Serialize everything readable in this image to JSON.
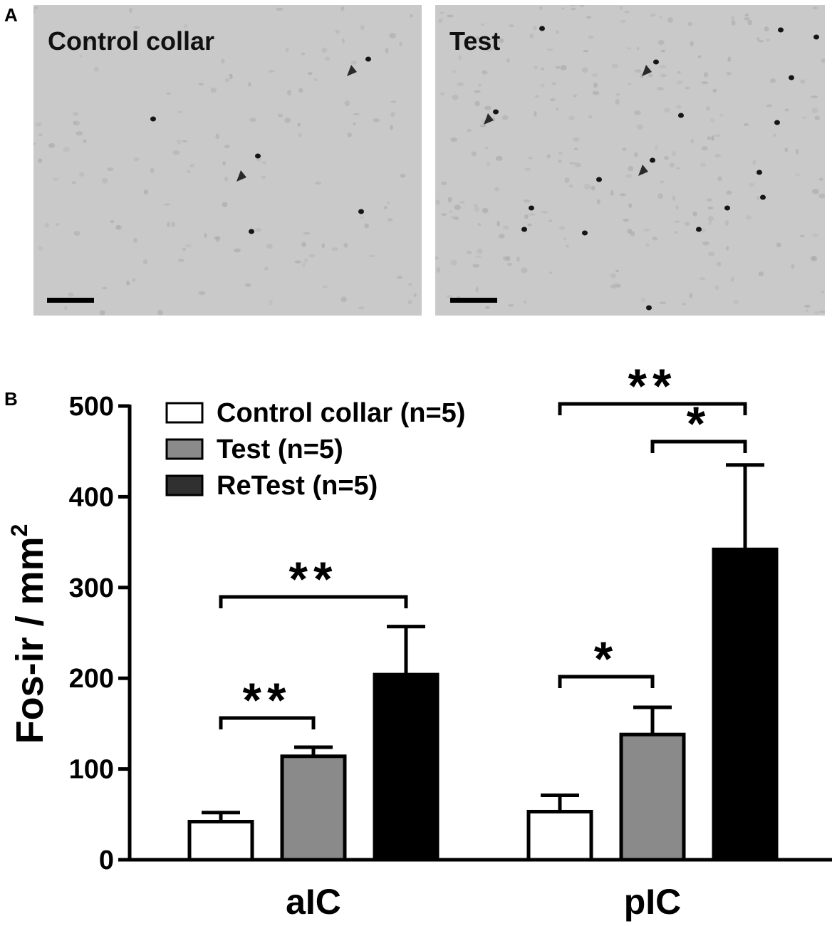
{
  "panel_a": {
    "letter": "A",
    "images": [
      {
        "label": "Control collar",
        "arrowheads": 2,
        "icon": "arrowhead-icon"
      },
      {
        "label": "Test",
        "arrowheads": 3,
        "icon": "arrowhead-icon"
      }
    ]
  },
  "panel_b": {
    "letter": "B"
  },
  "chart_data": {
    "type": "bar",
    "categories": [
      "aIC",
      "pIC"
    ],
    "series": [
      {
        "name": "Control collar (n=5)",
        "color": "#ffffff",
        "values": [
          42,
          53
        ],
        "errors": [
          10,
          18
        ]
      },
      {
        "name": "Test (n=5)",
        "color": "#8a8a8a",
        "values": [
          114,
          138
        ],
        "errors": [
          10,
          30
        ]
      },
      {
        "name": "ReTest (n=5)",
        "color": "#000000",
        "values": [
          204,
          342
        ],
        "errors": [
          53,
          93
        ]
      }
    ],
    "ylabel": "Fos-ir / mm",
    "ylabel_superscript": "2",
    "ylim": [
      0,
      500
    ],
    "yticks": [
      "0",
      "100",
      "200",
      "300",
      "400",
      "500"
    ],
    "legend_position": "top-left",
    "significance": [
      {
        "category": "aIC",
        "from": 0,
        "to": 1,
        "label": "**"
      },
      {
        "category": "aIC",
        "from": 0,
        "to": 2,
        "label": "**"
      },
      {
        "category": "pIC",
        "from": 0,
        "to": 1,
        "label": "*"
      },
      {
        "category": "pIC",
        "from": 1,
        "to": 2,
        "label": "*"
      },
      {
        "category": "pIC",
        "from": 0,
        "to": 2,
        "label": "**"
      }
    ]
  }
}
